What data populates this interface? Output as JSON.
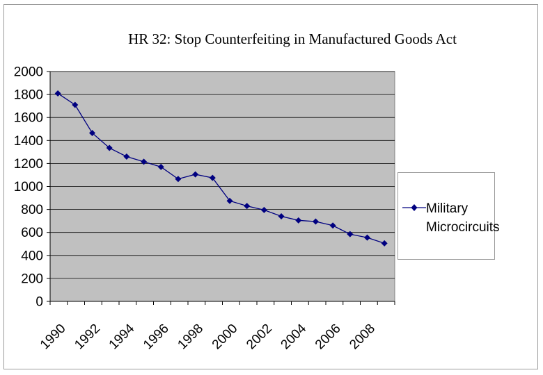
{
  "chart_data": {
    "type": "line",
    "title": "HR 32: Stop Counterfeiting in Manufactured Goods Act",
    "xlabel": "",
    "ylabel": "",
    "ylim": [
      0,
      2000
    ],
    "yticks": [
      0,
      200,
      400,
      600,
      800,
      1000,
      1200,
      1400,
      1600,
      1800,
      2000
    ],
    "xtick_labels": [
      "1990",
      "1992",
      "1994",
      "1996",
      "1998",
      "2000",
      "2002",
      "2004",
      "2006",
      "2008"
    ],
    "x": [
      1990,
      1991,
      1992,
      1993,
      1994,
      1995,
      1996,
      1997,
      1998,
      1999,
      2000,
      2001,
      2002,
      2003,
      2004,
      2005,
      2006,
      2007,
      2008,
      2009
    ],
    "series": [
      {
        "name": "Military Microcircuits",
        "values": [
          1810,
          1710,
          1465,
          1335,
          1260,
          1215,
          1170,
          1065,
          1105,
          1075,
          875,
          830,
          795,
          740,
          705,
          695,
          660,
          585,
          555,
          505
        ]
      }
    ],
    "grid": "horizontal",
    "legend_position": "right",
    "colors": {
      "plot_background": "#c0c0c0",
      "line": "#000080",
      "grid": "#000000"
    }
  }
}
